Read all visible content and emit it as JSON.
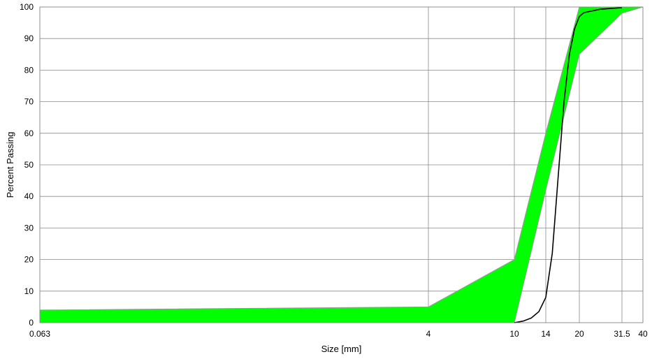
{
  "chart_data": {
    "type": "area",
    "title": "",
    "xlabel": "Size [mm]",
    "ylabel": "Percent Passing",
    "x_scale": "log",
    "xlim": [
      0.063,
      40
    ],
    "ylim": [
      0,
      100
    ],
    "x_ticks": [
      0.063,
      4,
      10,
      14,
      20,
      31.5,
      40
    ],
    "x_tick_labels": [
      "0.063",
      "4",
      "10",
      "14",
      "20",
      "31.5",
      "40"
    ],
    "y_ticks": [
      0,
      10,
      20,
      30,
      40,
      50,
      60,
      70,
      80,
      90,
      100
    ],
    "y_tick_labels": [
      "0",
      "10",
      "20",
      "30",
      "40",
      "50",
      "60",
      "70",
      "80",
      "90",
      "100"
    ],
    "grid": true,
    "envelope": {
      "color": "#00ff00",
      "upper": {
        "x": [
          0.063,
          4,
          10,
          14,
          20,
          31.5,
          40
        ],
        "y": [
          4,
          5,
          20,
          60,
          100,
          100,
          100
        ]
      },
      "lower": {
        "x": [
          0.063,
          4,
          10,
          14,
          20,
          31.5,
          40
        ],
        "y": [
          0,
          0,
          0,
          42,
          85,
          98,
          100
        ]
      }
    },
    "series": [
      {
        "color": "#000000",
        "x": [
          10,
          11,
          12,
          13,
          14,
          15,
          16,
          17,
          18,
          19,
          20,
          21,
          25,
          31.5
        ],
        "y": [
          0,
          0.5,
          1.5,
          3.5,
          8,
          22,
          47,
          70,
          85,
          93,
          97,
          98.2,
          99.3,
          99.8
        ]
      }
    ]
  }
}
